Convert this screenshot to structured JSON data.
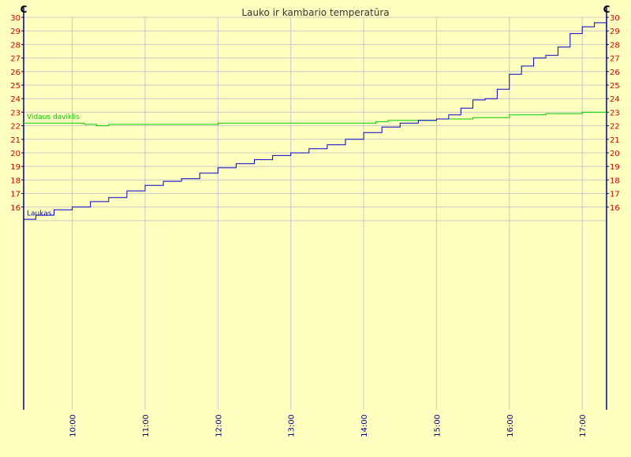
{
  "chart_data": {
    "type": "line",
    "title": "Lauko ir kambario temperatūra",
    "y_unit_left": "C",
    "y_unit_right": "C",
    "ylim": [
      15,
      30
    ],
    "yticks": [
      16,
      17,
      18,
      19,
      20,
      21,
      22,
      23,
      24,
      25,
      26,
      27,
      28,
      29,
      30
    ],
    "x_range": [
      "09:20",
      "17:20"
    ],
    "xticks": [
      "10:00",
      "11:00",
      "12:00",
      "13:00",
      "14:00",
      "15:00",
      "16:00",
      "17:00"
    ],
    "grid": true,
    "series": [
      {
        "name": "Vidaus daviklis",
        "color": "#00cc00",
        "points": [
          [
            "09:20",
            22.2
          ],
          [
            "09:50",
            22.2
          ],
          [
            "10:10",
            22.1
          ],
          [
            "10:20",
            22.0
          ],
          [
            "10:30",
            22.1
          ],
          [
            "11:00",
            22.1
          ],
          [
            "11:30",
            22.1
          ],
          [
            "12:00",
            22.2
          ],
          [
            "12:30",
            22.2
          ],
          [
            "13:00",
            22.2
          ],
          [
            "13:30",
            22.2
          ],
          [
            "14:00",
            22.2
          ],
          [
            "14:10",
            22.3
          ],
          [
            "14:20",
            22.4
          ],
          [
            "14:40",
            22.4
          ],
          [
            "15:00",
            22.5
          ],
          [
            "15:30",
            22.6
          ],
          [
            "16:00",
            22.8
          ],
          [
            "16:30",
            22.9
          ],
          [
            "16:50",
            22.9
          ],
          [
            "17:00",
            23.0
          ],
          [
            "17:20",
            23.0
          ]
        ]
      },
      {
        "name": "Laukas",
        "color": "#0000cc",
        "points": [
          [
            "09:20",
            15.1
          ],
          [
            "09:30",
            15.4
          ],
          [
            "09:45",
            15.8
          ],
          [
            "10:00",
            16.0
          ],
          [
            "10:15",
            16.4
          ],
          [
            "10:30",
            16.7
          ],
          [
            "10:45",
            17.2
          ],
          [
            "11:00",
            17.6
          ],
          [
            "11:15",
            17.9
          ],
          [
            "11:30",
            18.1
          ],
          [
            "11:45",
            18.5
          ],
          [
            "12:00",
            18.9
          ],
          [
            "12:15",
            19.2
          ],
          [
            "12:30",
            19.5
          ],
          [
            "12:45",
            19.8
          ],
          [
            "13:00",
            20.0
          ],
          [
            "13:15",
            20.3
          ],
          [
            "13:30",
            20.6
          ],
          [
            "13:45",
            21.0
          ],
          [
            "14:00",
            21.5
          ],
          [
            "14:15",
            21.9
          ],
          [
            "14:30",
            22.2
          ],
          [
            "14:45",
            22.4
          ],
          [
            "15:00",
            22.5
          ],
          [
            "15:10",
            22.8
          ],
          [
            "15:20",
            23.3
          ],
          [
            "15:30",
            23.9
          ],
          [
            "15:40",
            24.0
          ],
          [
            "15:50",
            24.7
          ],
          [
            "16:00",
            25.8
          ],
          [
            "16:10",
            26.4
          ],
          [
            "16:20",
            27.0
          ],
          [
            "16:30",
            27.2
          ],
          [
            "16:40",
            27.8
          ],
          [
            "16:50",
            28.8
          ],
          [
            "17:00",
            29.3
          ],
          [
            "17:10",
            29.6
          ],
          [
            "17:20",
            30.0
          ]
        ]
      }
    ]
  }
}
